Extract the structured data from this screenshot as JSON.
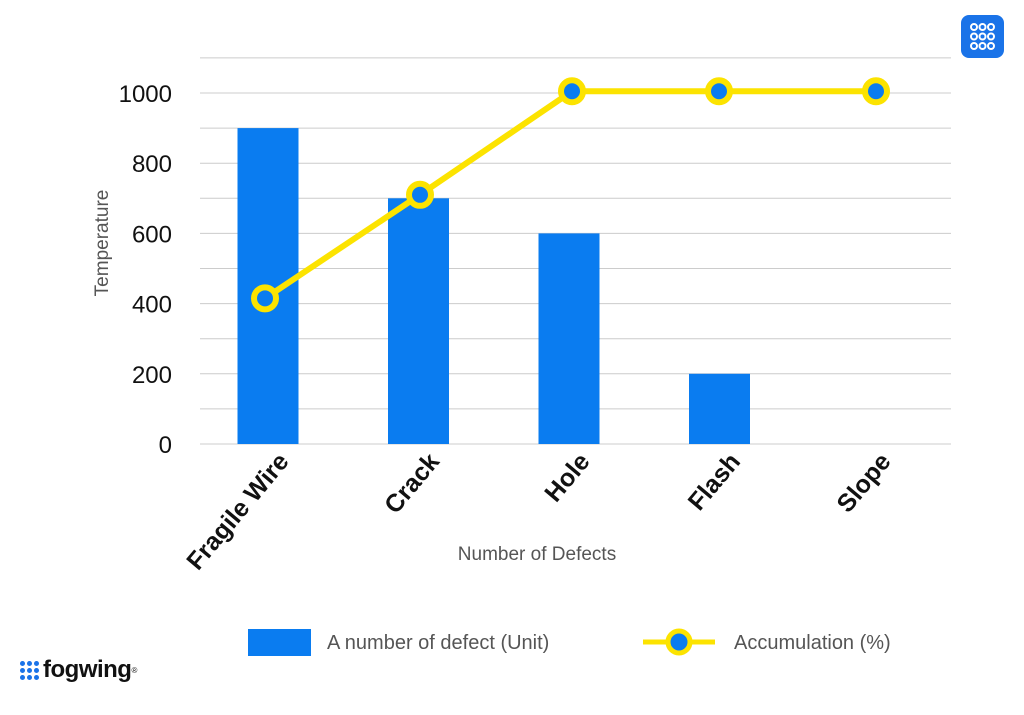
{
  "chart_data": {
    "type": "bar",
    "categories": [
      "Fragile Wire",
      "Crack",
      "Hole",
      "Flash",
      "Slope"
    ],
    "series": [
      {
        "name": "A number of defect (Unit)",
        "type": "bar",
        "color": "#0a7cf0",
        "values": [
          900,
          700,
          600,
          200,
          0
        ]
      },
      {
        "name": "Accumulation (%)",
        "type": "line",
        "color": "#fce300",
        "marker_center_color": "#0a7cf0",
        "values": [
          415,
          710,
          1005,
          1005,
          1005
        ]
      }
    ],
    "xlabel": "Number of Defects",
    "ylabel": "Temperature",
    "ylim": [
      0,
      1100
    ],
    "yticks": [
      0,
      200,
      400,
      600,
      800,
      1000
    ],
    "grid": true,
    "legend_position": "bottom"
  },
  "branding": {
    "logo_text": "fogwing",
    "app_icon": "grid-dots-icon"
  },
  "colors": {
    "bar": "#0a7cf0",
    "line": "#fce300",
    "grid": "#cccccc"
  }
}
